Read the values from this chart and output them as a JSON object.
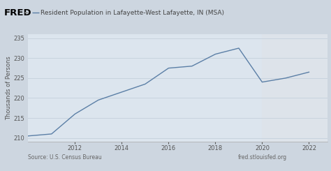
{
  "years": [
    2010,
    2011,
    2012,
    2013,
    2014,
    2015,
    2016,
    2017,
    2018,
    2019,
    2020,
    2021,
    2022
  ],
  "population": [
    210.5,
    211.0,
    216.0,
    219.5,
    221.5,
    223.5,
    227.5,
    228.0,
    231.0,
    232.5,
    224.0,
    225.0,
    226.5
  ],
  "line_color": "#5b7fa6",
  "line_width": 1.0,
  "title": "Resident Population in Lafayette-West Lafayette, IN (MSA)",
  "ylabel": "Thousands of Persons",
  "ylim": [
    209,
    236
  ],
  "yticks": [
    210,
    215,
    220,
    225,
    230,
    235
  ],
  "xlim": [
    2010.0,
    2022.8
  ],
  "xticks": [
    2012,
    2014,
    2016,
    2018,
    2020,
    2022
  ],
  "shaded_start": 2020,
  "shaded_end": 2023,
  "shaded_color": "#dde3ea",
  "plot_bg_color": "#dce5ee",
  "fig_bg_color": "#cdd6e0",
  "grid_color": "#c8d3de",
  "source_left": "Source: U.S. Census Bureau",
  "source_right": "fred.stlouisfed.org",
  "fred_text": "FRED",
  "title_fontsize": 6.5,
  "axis_fontsize": 6.0,
  "tick_fontsize": 6.0,
  "source_fontsize": 5.5
}
